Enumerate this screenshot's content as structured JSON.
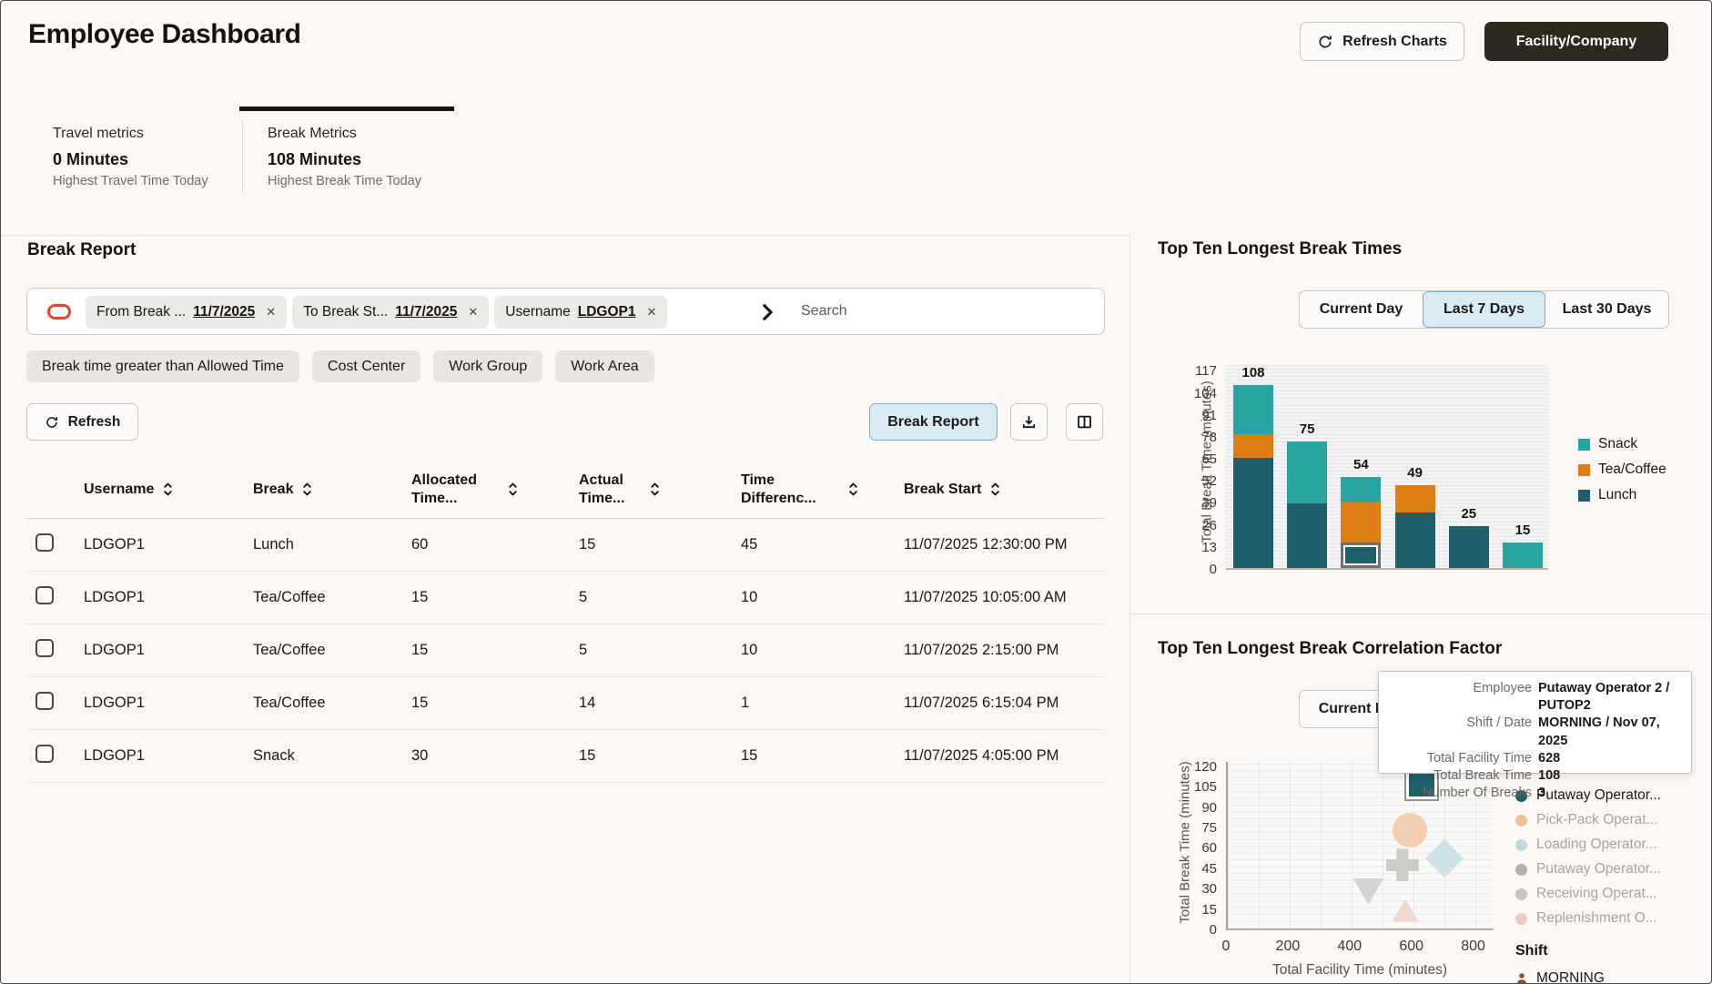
{
  "page": {
    "title": "Employee Dashboard"
  },
  "header": {
    "refresh_charts_label": "Refresh Charts",
    "facility_company_label": "Facility/Company"
  },
  "metrics": {
    "travel": {
      "label": "Travel metrics",
      "value": "0 Minutes",
      "caption": "Highest Travel Time Today"
    },
    "break": {
      "label": "Break Metrics",
      "value": "108 Minutes",
      "caption": "Highest Break Time Today"
    }
  },
  "break_report": {
    "title": "Break Report",
    "filters": [
      {
        "label": "From Break ...",
        "value": "11/7/2025"
      },
      {
        "label": "To Break St...",
        "value": "11/7/2025"
      },
      {
        "label": "Username",
        "value": "LDGOP1"
      }
    ],
    "search_placeholder": "Search",
    "quick_filters": [
      "Break time greater than Allowed Time",
      "Cost Center",
      "Work Group",
      "Work Area"
    ],
    "refresh_label": "Refresh",
    "report_button_label": "Break Report",
    "table": {
      "columns": [
        "Username",
        "Break",
        "Allocated Time...",
        "Actual Time...",
        "Time Differenc...",
        "Break Start"
      ],
      "rows": [
        [
          "LDGOP1",
          "Lunch",
          "60",
          "15",
          "45",
          "11/07/2025 12:30:00 PM"
        ],
        [
          "LDGOP1",
          "Tea/Coffee",
          "15",
          "5",
          "10",
          "11/07/2025 10:05:00 AM"
        ],
        [
          "LDGOP1",
          "Tea/Coffee",
          "15",
          "5",
          "10",
          "11/07/2025 2:15:00 PM"
        ],
        [
          "LDGOP1",
          "Tea/Coffee",
          "15",
          "14",
          "1",
          "11/07/2025 6:15:04 PM"
        ],
        [
          "LDGOP1",
          "Snack",
          "30",
          "15",
          "15",
          "11/07/2025 4:05:00 PM"
        ]
      ]
    }
  },
  "colors": {
    "snack": "#2aa4a1",
    "tea_coffee": "#dd7d15",
    "lunch": "#1f5e6b",
    "selected_bg": "#d9ecf4",
    "selected_border": "#74aecb",
    "filter_icon_red": "#e8452f",
    "dark_button": "#2e2822"
  },
  "chart_data": [
    {
      "type": "bar",
      "stacked": true,
      "title": "Top Ten Longest Break Times",
      "ylabel": "Total Break Time (minutes)",
      "xlabel": "",
      "y_ticks": [
        0,
        13,
        26,
        39,
        52,
        65,
        78,
        91,
        104,
        117
      ],
      "ylim": [
        0,
        121
      ],
      "grid": true,
      "legend_position": "right",
      "series_order": [
        "Lunch",
        "Tea/Coffee",
        "Snack"
      ],
      "legend": [
        {
          "name": "Snack",
          "color": "#2aa4a1"
        },
        {
          "name": "Tea/Coffee",
          "color": "#dd7d15"
        },
        {
          "name": "Lunch",
          "color": "#1f5e6b"
        }
      ],
      "bars": [
        {
          "total": 108,
          "segments": {
            "Lunch": 65,
            "Tea/Coffee": 14,
            "Snack": 29
          }
        },
        {
          "total": 75,
          "segments": {
            "Lunch": 38,
            "Snack": 37
          }
        },
        {
          "total": 54,
          "segments": {
            "Lunch": 15,
            "Tea/Coffee": 24,
            "Snack": 15
          },
          "selected_segment": "Lunch"
        },
        {
          "total": 49,
          "segments": {
            "Lunch": 33,
            "Tea/Coffee": 16
          }
        },
        {
          "total": 25,
          "segments": {
            "Lunch": 25
          }
        },
        {
          "total": 15,
          "segments": {
            "Snack": 15
          }
        }
      ],
      "range_buttons": [
        {
          "label": "Current Day",
          "active": false
        },
        {
          "label": "Last 7 Days",
          "active": true
        },
        {
          "label": "Last 30 Days",
          "active": false
        }
      ]
    },
    {
      "type": "scatter",
      "title": "Top Ten Longest Break Correlation Factor",
      "xlabel": "Total Facility Time (minutes)",
      "ylabel": "Total Break Time (minutes)",
      "x_ticks": [
        0,
        200,
        400,
        600,
        800
      ],
      "y_ticks": [
        0,
        15,
        30,
        45,
        60,
        75,
        90,
        105,
        120
      ],
      "xlim": [
        0,
        866
      ],
      "ylim": [
        0,
        124
      ],
      "grid": true,
      "visible_button_label": "Current Day",
      "points": [
        {
          "series": "Putaway Operator...",
          "x": 628,
          "y": 108,
          "shape": "square",
          "color": "#1f5e6b",
          "selected": true
        },
        {
          "series": "Pick-Pack Operat...",
          "x": 590,
          "y": 74,
          "shape": "circle",
          "color": "#f2c49e"
        },
        {
          "series": "Loading Operator...",
          "x": 700,
          "y": 53,
          "shape": "diamond",
          "color": "#c5dee2"
        },
        {
          "series": "Putaway Operator...",
          "x": 565,
          "y": 48,
          "shape": "plus",
          "color": "#c6c4c1"
        },
        {
          "series": "Receiving Operat...",
          "x": 455,
          "y": 27,
          "shape": "triangle-down",
          "color": "#cfcecc"
        },
        {
          "series": "Replenishment O...",
          "x": 575,
          "y": 13,
          "shape": "triangle-up",
          "color": "#e9d2c8"
        }
      ],
      "legend_title": "Employee",
      "legend": [
        {
          "label": "Putaway Operator...",
          "color": "#1f5e6b",
          "active": true
        },
        {
          "label": "Pick-Pack Operat...",
          "color": "#eec09a",
          "active": false
        },
        {
          "label": "Loading Operator...",
          "color": "#bedade",
          "active": false
        },
        {
          "label": "Putaway Operator...",
          "color": "#b4b2af",
          "active": false
        },
        {
          "label": "Receiving Operat...",
          "color": "#c8c6c3",
          "active": false
        },
        {
          "label": "Replenishment O...",
          "color": "#e6cec5",
          "active": false
        }
      ],
      "shift_title": "Shift",
      "shift_value": "MORNING"
    }
  ],
  "tooltip": {
    "rows": [
      {
        "label": "Employee",
        "value": "Putaway Operator 2 / PUTOP2"
      },
      {
        "label": "Shift / Date",
        "value": "MORNING / Nov 07, 2025"
      },
      {
        "label": "Total Facility Time",
        "value": "628"
      },
      {
        "label": "Total Break Time",
        "value": "108"
      },
      {
        "label": "Number Of Breaks",
        "value": "3"
      }
    ]
  }
}
